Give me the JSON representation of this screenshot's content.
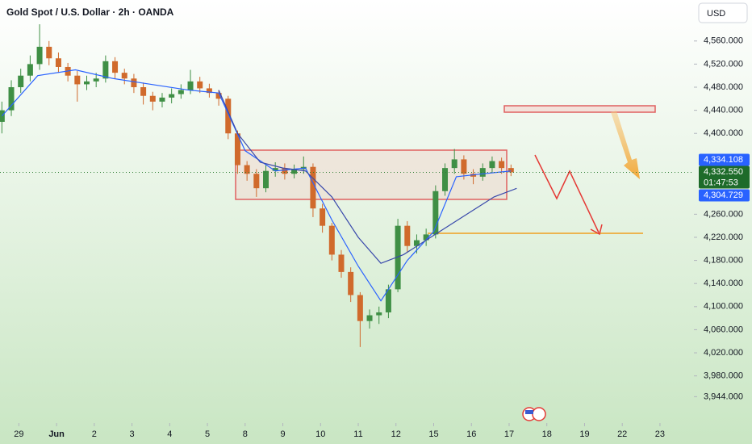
{
  "header": {
    "title": "Gold Spot / U.S. Dollar · 2h · OANDA"
  },
  "currency_button": "USD",
  "chart_data": {
    "type": "candlestick",
    "x": [
      -0.45,
      -0.2,
      0.05,
      0.3,
      0.55,
      0.8,
      1.05,
      1.3,
      1.55,
      1.8,
      2.05,
      2.3,
      2.55,
      2.8,
      3.05,
      3.3,
      3.55,
      3.8,
      4.05,
      4.3,
      4.55,
      4.8,
      5.05,
      5.3,
      5.55,
      5.8,
      6.05,
      6.3,
      6.55,
      6.8,
      7.05,
      7.3,
      7.55,
      7.8,
      8.05,
      8.3,
      8.55,
      8.8,
      9.05,
      9.3,
      9.55,
      9.8,
      10.05,
      10.3,
      10.55,
      10.8,
      11.05,
      11.3,
      11.55,
      11.8,
      12.05,
      12.3,
      12.55,
      12.8,
      13.05
    ],
    "open": [
      4420,
      4440,
      4480,
      4500,
      4520,
      4550,
      4530,
      4515,
      4500,
      4485,
      4490,
      4495,
      4525,
      4505,
      4495,
      4480,
      4465,
      4455,
      4462,
      4468,
      4475,
      4490,
      4478,
      4470,
      4460,
      4400,
      4345,
      4330,
      4305,
      4335,
      4340,
      4330,
      4338,
      4342,
      4270,
      4240,
      4190,
      4160,
      4120,
      4075,
      4085,
      4090,
      4130,
      4240,
      4205,
      4215,
      4225,
      4300,
      4340,
      4355,
      4330,
      4325,
      4340,
      4352,
      4340
    ],
    "high": [
      4455,
      4492,
      4512,
      4535,
      4589,
      4560,
      4540,
      4522,
      4508,
      4500,
      4505,
      4535,
      4532,
      4512,
      4503,
      4488,
      4472,
      4470,
      4478,
      4485,
      4510,
      4498,
      4486,
      4475,
      4465,
      4405,
      4352,
      4338,
      4345,
      4350,
      4348,
      4346,
      4360,
      4348,
      4278,
      4245,
      4198,
      4168,
      4125,
      4095,
      4100,
      4138,
      4252,
      4248,
      4225,
      4235,
      4310,
      4348,
      4373,
      4362,
      4338,
      4348,
      4360,
      4358,
      4346
    ],
    "low": [
      4400,
      4430,
      4470,
      4490,
      4510,
      4518,
      4505,
      4490,
      4455,
      4475,
      4480,
      4488,
      4495,
      4485,
      4470,
      4450,
      4440,
      4445,
      4452,
      4460,
      4468,
      4470,
      4462,
      4448,
      4390,
      4330,
      4318,
      4290,
      4298,
      4325,
      4320,
      4322,
      4330,
      4255,
      4228,
      4180,
      4150,
      4108,
      4030,
      4062,
      4070,
      4080,
      4125,
      4195,
      4192,
      4205,
      4218,
      4292,
      4330,
      4320,
      4312,
      4318,
      4332,
      4330,
      4326
    ],
    "close": [
      4440,
      4480,
      4500,
      4520,
      4550,
      4530,
      4515,
      4500,
      4485,
      4490,
      4495,
      4525,
      4505,
      4495,
      4480,
      4465,
      4455,
      4462,
      4468,
      4475,
      4490,
      4478,
      4470,
      4460,
      4400,
      4345,
      4330,
      4305,
      4335,
      4340,
      4330,
      4338,
      4342,
      4270,
      4240,
      4190,
      4160,
      4120,
      4075,
      4085,
      4090,
      4130,
      4240,
      4205,
      4215,
      4225,
      4300,
      4340,
      4355,
      4330,
      4325,
      4340,
      4352,
      4340,
      4332.55
    ],
    "up_color": "#3f8f45",
    "down_color": "#d06a2c",
    "lines": [
      {
        "color": "#2962ff",
        "x": [
          -0.45,
          0.5,
          1.5,
          2.5,
          3.5,
          4.5,
          5.3,
          6.0,
          6.8,
          7.6,
          8.3,
          9.0,
          9.6,
          10.3,
          11.0,
          11.6,
          12.3,
          13.05
        ],
        "values": [
          4430,
          4500,
          4510,
          4495,
          4485,
          4475,
          4470,
          4370,
          4335,
          4340,
          4250,
          4170,
          4110,
          4180,
          4230,
          4325,
          4330,
          4335
        ]
      },
      {
        "color": "#3949ab",
        "x": [
          5.3,
          5.8,
          6.4,
          7.0,
          7.6,
          8.3,
          9.0,
          9.6,
          10.2,
          10.8,
          11.4,
          12.0,
          12.6,
          13.2
        ],
        "values": [
          4475,
          4400,
          4350,
          4340,
          4335,
          4290,
          4220,
          4175,
          4190,
          4215,
          4240,
          4265,
          4290,
          4304.729
        ]
      }
    ],
    "xlim": [
      -0.5,
      17.9
    ],
    "ylim": [
      3904,
      4631
    ],
    "xticks": [
      {
        "value": 0,
        "label": "29"
      },
      {
        "value": 1,
        "label": "Jun"
      },
      {
        "value": 2,
        "label": "2"
      },
      {
        "value": 3,
        "label": "3"
      },
      {
        "value": 4,
        "label": "4"
      },
      {
        "value": 5,
        "label": "5"
      },
      {
        "value": 6,
        "label": "8"
      },
      {
        "value": 7,
        "label": "9"
      },
      {
        "value": 8,
        "label": "10"
      },
      {
        "value": 9,
        "label": "11"
      },
      {
        "value": 10,
        "label": "12"
      },
      {
        "value": 11,
        "label": "15"
      },
      {
        "value": 12,
        "label": "16"
      },
      {
        "value": 13,
        "label": "17"
      },
      {
        "value": 14,
        "label": "18"
      },
      {
        "value": 15,
        "label": "19"
      },
      {
        "value": 16,
        "label": "22"
      },
      {
        "value": 17,
        "label": "23"
      }
    ],
    "yticks": [
      {
        "value": 4560,
        "label": "4,560.000"
      },
      {
        "value": 4520,
        "label": "4,520.000"
      },
      {
        "value": 4480,
        "label": "4,480.000"
      },
      {
        "value": 4440,
        "label": "4,440.000"
      },
      {
        "value": 4400,
        "label": "4,400.000"
      },
      {
        "value": 4260,
        "label": "4,260.000"
      },
      {
        "value": 4220,
        "label": "4,220.000"
      },
      {
        "value": 4180,
        "label": "4,180.000"
      },
      {
        "value": 4140,
        "label": "4,140.000"
      },
      {
        "value": 4100,
        "label": "4,100.000"
      },
      {
        "value": 4060,
        "label": "4,060.000"
      },
      {
        "value": 4020,
        "label": "4,020.000"
      },
      {
        "value": 3980,
        "label": "3,980.000"
      },
      {
        "value": 3944,
        "label": "3,944.000"
      }
    ],
    "price_labels": [
      {
        "value": 4334.108,
        "label": "4,334.108",
        "color": "#2962ff"
      },
      {
        "value": 4332.55,
        "label": "4,332.550",
        "countdown": "01:47:53",
        "color": "#1e6b2a"
      },
      {
        "value": 4304.729,
        "label": "4,304.729",
        "color": "#2962ff"
      }
    ]
  }
}
